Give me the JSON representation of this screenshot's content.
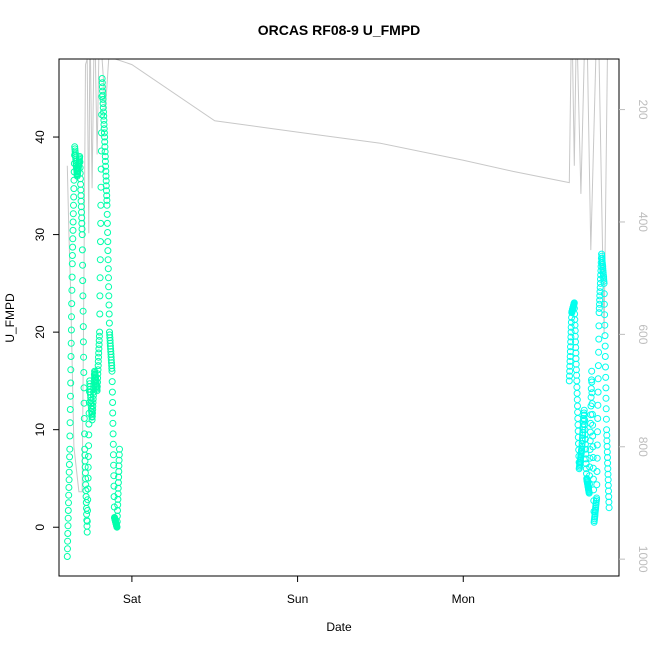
{
  "chart_data": {
    "type": "scatter",
    "title": "ORCAS RF08-9 U_FMPD",
    "xlabel": "Date",
    "ylabel": "U_FMPD",
    "x_tick_labels": [
      "Sat",
      "Sun",
      "Mon"
    ],
    "x_tick_days": [
      1,
      2,
      3
    ],
    "xlim_days": [
      0.56,
      3.94
    ],
    "ylim": [
      -5,
      48
    ],
    "y_ticks": [
      0,
      10,
      20,
      30,
      40
    ],
    "y_right_label": "",
    "y_right_ticks": [
      200,
      400,
      600,
      800,
      1000
    ],
    "y_right_lim": [
      1030,
      110
    ],
    "grid": false,
    "legend": "none",
    "colors": {
      "points_first": "#00ffaa",
      "points_second": "#00ffee",
      "pressure_line": "#c8c8c8",
      "axis": "#000000",
      "right_axis": "#bdbdbd"
    },
    "series": [
      {
        "x_days": [
          0.61,
          0.625,
          0.64,
          0.655,
          0.67,
          0.685,
          0.7,
          0.715,
          0.73,
          0.745,
          0.76,
          0.775,
          0.79,
          0.805,
          0.82,
          0.835,
          0.85,
          0.865,
          0.88,
          0.895,
          0.91,
          0.925
        ],
        "y": [
          -3,
          8,
          27,
          39,
          36,
          38,
          30,
          8,
          -0.5,
          15,
          11,
          16,
          14,
          20,
          46,
          40,
          33,
          20,
          16,
          1,
          0,
          8
        ]
      },
      {
        "x_days": [
          3.64,
          3.655,
          3.67,
          3.685,
          3.7,
          3.715,
          3.73,
          3.745,
          3.76,
          3.775,
          3.79,
          3.805,
          3.82,
          3.835,
          3.85,
          3.865,
          3.88
        ],
        "y": [
          15,
          22,
          23,
          15,
          6,
          8,
          12,
          5,
          3.5,
          16,
          0.5,
          3,
          22,
          28,
          25,
          10,
          2
        ]
      }
    ],
    "pressure_series": {
      "x_days": [
        0.61,
        0.62,
        0.63,
        0.65,
        0.68,
        0.7,
        0.71,
        0.72,
        0.73,
        0.74,
        0.745,
        0.75,
        0.76,
        0.77,
        0.78,
        0.79,
        0.8,
        0.82,
        0.84,
        0.86,
        0.9,
        1.0,
        1.5,
        2.0,
        2.5,
        3.0,
        3.3,
        3.64,
        3.65,
        3.66,
        3.67,
        3.68,
        3.69,
        3.71,
        3.73,
        3.75,
        3.77,
        3.8,
        3.82,
        3.85,
        3.87,
        3.9
      ],
      "p": [
        300,
        420,
        520,
        800,
        880,
        880,
        500,
        120,
        110,
        420,
        110,
        110,
        340,
        110,
        110,
        280,
        110,
        110,
        200,
        110,
        110,
        120,
        220,
        240,
        260,
        290,
        310,
        330,
        110,
        110,
        300,
        110,
        110,
        350,
        110,
        110,
        450,
        110,
        110,
        600,
        110,
        110
      ]
    }
  }
}
